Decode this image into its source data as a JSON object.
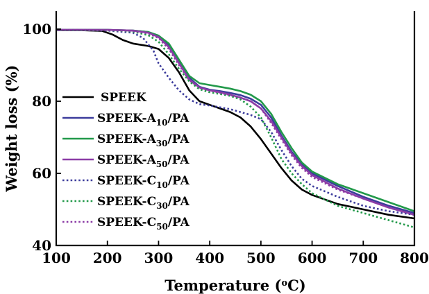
{
  "chart_data": {
    "type": "line",
    "xlabel": "Temperature (",
    "xlabel_sup": "o",
    "xlabel_tail": "C)",
    "ylabel": "Weight loss (%)",
    "xlim": [
      100,
      800
    ],
    "ylim": [
      40,
      105
    ],
    "xticks": [
      100,
      200,
      300,
      400,
      500,
      600,
      700,
      800
    ],
    "yticks": [
      40,
      60,
      80,
      100
    ],
    "legend_position": "bottom-left",
    "series": [
      {
        "name": "SPEEK",
        "legend": {
          "pre": "SPEEK",
          "sub": "",
          "post": ""
        },
        "color": "#000000",
        "dash": "solid",
        "x": [
          100,
          150,
          190,
          210,
          230,
          250,
          280,
          300,
          320,
          340,
          360,
          380,
          400,
          420,
          440,
          460,
          480,
          500,
          520,
          540,
          560,
          580,
          600,
          650,
          700,
          750,
          800
        ],
        "y": [
          99.7,
          99.7,
          99.5,
          98.5,
          97.0,
          96.0,
          95.3,
          94.5,
          92.0,
          88.0,
          83.0,
          80.0,
          79.0,
          78.0,
          77.0,
          75.5,
          73.0,
          69.5,
          65.5,
          61.5,
          58.0,
          55.5,
          54.0,
          51.5,
          50.0,
          48.5,
          47.5
        ]
      },
      {
        "name": "SPEEK-A10/PA",
        "legend": {
          "pre": "SPEEK-A",
          "sub": "10",
          "post": "/PA"
        },
        "color": "#3c3c9c",
        "dash": "solid",
        "x": [
          100,
          150,
          200,
          250,
          280,
          300,
          320,
          340,
          360,
          380,
          400,
          420,
          440,
          460,
          480,
          500,
          520,
          540,
          560,
          580,
          600,
          650,
          700,
          750,
          800
        ],
        "y": [
          99.8,
          99.8,
          99.8,
          99.6,
          99.2,
          98.2,
          95.5,
          91.0,
          86.5,
          84.0,
          83.2,
          82.8,
          82.3,
          81.7,
          80.7,
          79.0,
          75.5,
          70.5,
          66.0,
          62.5,
          60.0,
          56.5,
          53.5,
          51.0,
          49.0
        ]
      },
      {
        "name": "SPEEK-A30/PA",
        "legend": {
          "pre": "SPEEK-A",
          "sub": "30",
          "post": "/PA"
        },
        "color": "#22994a",
        "dash": "solid",
        "x": [
          100,
          150,
          200,
          250,
          280,
          300,
          320,
          340,
          360,
          380,
          400,
          420,
          440,
          460,
          480,
          500,
          520,
          540,
          560,
          580,
          600,
          650,
          700,
          750,
          800
        ],
        "y": [
          99.8,
          99.8,
          99.8,
          99.6,
          99.2,
          98.2,
          96.0,
          91.5,
          87.0,
          85.0,
          84.5,
          84.0,
          83.5,
          82.8,
          81.8,
          80.0,
          76.5,
          71.5,
          67.0,
          63.0,
          60.5,
          57.0,
          54.5,
          52.0,
          49.5
        ]
      },
      {
        "name": "SPEEK-A50/PA",
        "legend": {
          "pre": "SPEEK-A",
          "sub": "50",
          "post": "/PA"
        },
        "color": "#8c3ca6",
        "dash": "solid",
        "x": [
          100,
          150,
          200,
          250,
          280,
          300,
          320,
          340,
          360,
          380,
          400,
          420,
          440,
          460,
          480,
          500,
          520,
          540,
          560,
          580,
          600,
          650,
          700,
          750,
          800
        ],
        "y": [
          99.8,
          99.8,
          99.8,
          99.6,
          99.0,
          97.8,
          95.0,
          90.5,
          86.0,
          83.8,
          83.0,
          82.5,
          81.8,
          81.0,
          80.0,
          78.0,
          74.5,
          70.0,
          65.5,
          62.0,
          59.5,
          55.8,
          53.0,
          50.5,
          48.5
        ]
      },
      {
        "name": "SPEEK-C10/PA",
        "legend": {
          "pre": "SPEEK-C",
          "sub": "10",
          "post": "/PA"
        },
        "color": "#3c3c9c",
        "dash": "dotted",
        "x": [
          100,
          150,
          200,
          250,
          270,
          290,
          300,
          320,
          340,
          360,
          380,
          400,
          420,
          440,
          460,
          480,
          500,
          520,
          540,
          560,
          580,
          600,
          650,
          700,
          750,
          800
        ],
        "y": [
          99.7,
          99.7,
          99.6,
          99.0,
          97.5,
          94.0,
          90.5,
          86.5,
          83.0,
          80.5,
          79.2,
          78.8,
          78.3,
          77.8,
          77.0,
          76.2,
          75.0,
          71.5,
          66.5,
          62.0,
          58.5,
          56.5,
          53.5,
          51.0,
          49.5,
          48.5
        ]
      },
      {
        "name": "SPEEK-C30/PA",
        "legend": {
          "pre": "SPEEK-C",
          "sub": "30",
          "post": "/PA"
        },
        "color": "#22994a",
        "dash": "dotted",
        "x": [
          100,
          150,
          200,
          250,
          280,
          300,
          320,
          340,
          360,
          380,
          400,
          420,
          440,
          460,
          480,
          500,
          520,
          540,
          560,
          580,
          600,
          650,
          700,
          750,
          800
        ],
        "y": [
          99.7,
          99.7,
          99.7,
          99.3,
          98.3,
          96.5,
          93.0,
          89.0,
          85.5,
          83.3,
          82.5,
          82.0,
          81.5,
          80.5,
          78.5,
          75.5,
          70.0,
          64.0,
          60.0,
          57.0,
          54.5,
          51.0,
          49.0,
          47.0,
          45.0
        ]
      },
      {
        "name": "SPEEK-C50/PA",
        "legend": {
          "pre": "SPEEK-C",
          "sub": "50",
          "post": "/PA"
        },
        "color": "#8c3ca6",
        "dash": "dotted",
        "x": [
          100,
          150,
          200,
          250,
          280,
          300,
          320,
          340,
          360,
          380,
          400,
          420,
          440,
          460,
          480,
          500,
          520,
          540,
          560,
          580,
          600,
          650,
          700,
          750,
          800
        ],
        "y": [
          99.8,
          99.8,
          99.7,
          99.5,
          98.8,
          97.5,
          94.5,
          90.0,
          85.8,
          83.8,
          83.0,
          82.3,
          81.7,
          81.0,
          80.0,
          78.0,
          74.0,
          69.5,
          65.0,
          61.5,
          59.0,
          55.5,
          53.0,
          50.5,
          48.5
        ]
      }
    ]
  }
}
